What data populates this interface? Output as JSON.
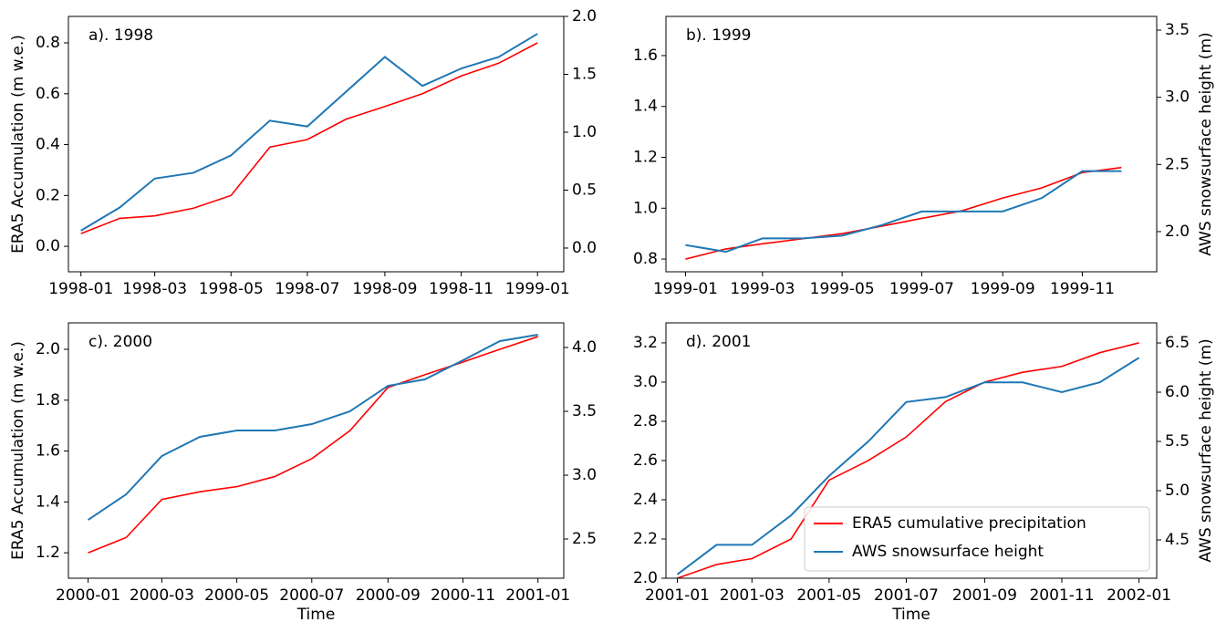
{
  "chart_data": [
    {
      "type": "line",
      "title": "a). 1998",
      "ylabel": "ERA5 Accumulation (m w.e.)",
      "x": [
        "1998-01",
        "1998-02",
        "1998-03",
        "1998-04",
        "1998-05",
        "1998-06",
        "1998-07",
        "1998-08",
        "1998-09",
        "1998-10",
        "1998-11",
        "1998-12",
        "1999-01"
      ],
      "xlim": [
        "1997-12-22",
        "1999-01-22"
      ],
      "xticks": [
        "1998-01",
        "1998-03",
        "1998-05",
        "1998-07",
        "1998-09",
        "1998-11",
        "1999-01"
      ],
      "ylim": [
        -0.1,
        0.904
      ],
      "yticks": [
        {
          "value": 0,
          "label": "0.0"
        },
        0.2,
        0.4,
        0.6,
        0.8
      ],
      "y2lim": [
        -0.205,
        2.0
      ],
      "y2ticks": [
        {
          "value": 0,
          "label": "0.0"
        },
        0.5,
        {
          "value": 1,
          "label": "1.0"
        },
        1.5,
        {
          "value": 2,
          "label": "2.0"
        }
      ],
      "series": [
        {
          "color": "#ff0000",
          "values": [
            0.05,
            0.11,
            0.12,
            0.15,
            0.2,
            0.39,
            0.42,
            0.5,
            0.55,
            0.6,
            0.67,
            0.72,
            0.8
          ]
        },
        {
          "color": "#1f77b4",
          "axis": "y2",
          "values": [
            0.15,
            0.35,
            0.6,
            0.65,
            0.8,
            1.1,
            1.05,
            1.35,
            1.65,
            1.4,
            1.55,
            1.65,
            1.85
          ]
        }
      ]
    },
    {
      "type": "line",
      "title": "b). 1999",
      "y2label": "AWS snowsurface height (m)",
      "x": [
        "1999-01",
        "1999-02",
        "1999-03",
        "1999-04",
        "1999-05",
        "1999-06",
        "1999-07",
        "1999-08",
        "1999-09",
        "1999-10",
        "1999-11",
        "1999-12"
      ],
      "xlim": [
        "1998-12-17",
        "1999-12-28"
      ],
      "xticks": [
        "1999-01",
        "1999-03",
        "1999-05",
        "1999-07",
        "1999-09",
        "1999-11"
      ],
      "ylim": [
        0.75,
        1.754
      ],
      "yticks": [
        0.8,
        {
          "value": 1,
          "label": "1.0"
        },
        1.2,
        1.4,
        1.6
      ],
      "y2lim": [
        1.701,
        3.602
      ],
      "y2ticks": [
        {
          "value": 2,
          "label": "2.0"
        },
        2.5,
        {
          "value": 3,
          "label": "3.0"
        },
        3.5
      ],
      "series": [
        {
          "color": "#ff0000",
          "values": [
            0.8,
            0.84,
            0.86,
            0.88,
            0.9,
            0.93,
            0.96,
            0.99,
            1.04,
            1.08,
            1.14,
            1.16
          ]
        },
        {
          "color": "#1f77b4",
          "axis": "y2",
          "values": [
            1.9,
            1.85,
            1.95,
            1.95,
            1.97,
            2.05,
            2.15,
            2.15,
            2.15,
            2.25,
            2.45,
            2.45
          ]
        }
      ]
    },
    {
      "type": "line",
      "title": "c). 2000",
      "ylabel": "ERA5 Accumulation (m w.e.)",
      "xlabel": "Time",
      "x": [
        "2000-01",
        "2000-02",
        "2000-03",
        "2000-04",
        "2000-05",
        "2000-06",
        "2000-07",
        "2000-08",
        "2000-09",
        "2000-10",
        "2000-11",
        "2000-12",
        "2001-01"
      ],
      "xlim": [
        "1999-12-16",
        "2001-01-22"
      ],
      "xticks": [
        "2000-01",
        "2000-03",
        "2000-05",
        "2000-07",
        "2000-09",
        "2000-11",
        "2001-01"
      ],
      "ylim": [
        1.1,
        2.104
      ],
      "yticks": [
        1.2,
        1.4,
        1.6,
        1.8,
        {
          "value": 2,
          "label": "2.0"
        }
      ],
      "y2lim": [
        2.193,
        4.193
      ],
      "y2ticks": [
        2.5,
        {
          "value": 3,
          "label": "3.0"
        },
        3.5,
        {
          "value": 4,
          "label": "4.0"
        }
      ],
      "series": [
        {
          "color": "#ff0000",
          "values": [
            1.2,
            1.26,
            1.41,
            1.44,
            1.46,
            1.5,
            1.57,
            1.68,
            1.85,
            1.9,
            1.95,
            2.0,
            2.05
          ]
        },
        {
          "color": "#1f77b4",
          "axis": "y2",
          "values": [
            2.65,
            2.85,
            3.15,
            3.3,
            3.35,
            3.35,
            3.4,
            3.5,
            3.7,
            3.75,
            3.9,
            4.05,
            4.1
          ]
        }
      ]
    },
    {
      "type": "line",
      "title": "d). 2001",
      "y2label": "AWS snowsurface height (m)",
      "xlabel": "Time",
      "legend": "lower right",
      "x": [
        "2001-01",
        "2001-02",
        "2001-03",
        "2001-04",
        "2001-05",
        "2001-06",
        "2001-07",
        "2001-08",
        "2001-09",
        "2001-10",
        "2001-11",
        "2001-12",
        "2002-01"
      ],
      "xlim": [
        "2000-12-23",
        "2002-01-15"
      ],
      "xticks": [
        "2001-01",
        "2001-03",
        "2001-05",
        "2001-07",
        "2001-09",
        "2001-11",
        "2002-01"
      ],
      "ylim": [
        2.0,
        3.302
      ],
      "yticks": [
        {
          "value": 2,
          "label": "2.0"
        },
        2.2,
        2.4,
        2.6,
        2.8,
        {
          "value": 3,
          "label": "3.0"
        },
        3.2
      ],
      "y2lim": [
        4.111,
        6.704
      ],
      "y2ticks": [
        4.5,
        {
          "value": 5,
          "label": "5.0"
        },
        5.5,
        {
          "value": 6,
          "label": "6.0"
        },
        6.5
      ],
      "series": [
        {
          "name": "ERA5 cumulative precipitation",
          "color": "#ff0000",
          "values": [
            2.0,
            2.07,
            2.1,
            2.2,
            2.5,
            2.6,
            2.72,
            2.9,
            3.0,
            3.05,
            3.08,
            3.15,
            3.2
          ]
        },
        {
          "name": "AWS snowsurface height",
          "color": "#1f77b4",
          "axis": "y2",
          "values": [
            4.15,
            4.45,
            4.45,
            4.75,
            5.15,
            5.5,
            5.9,
            5.95,
            6.1,
            6.1,
            6.0,
            6.1,
            6.35
          ]
        }
      ]
    }
  ]
}
